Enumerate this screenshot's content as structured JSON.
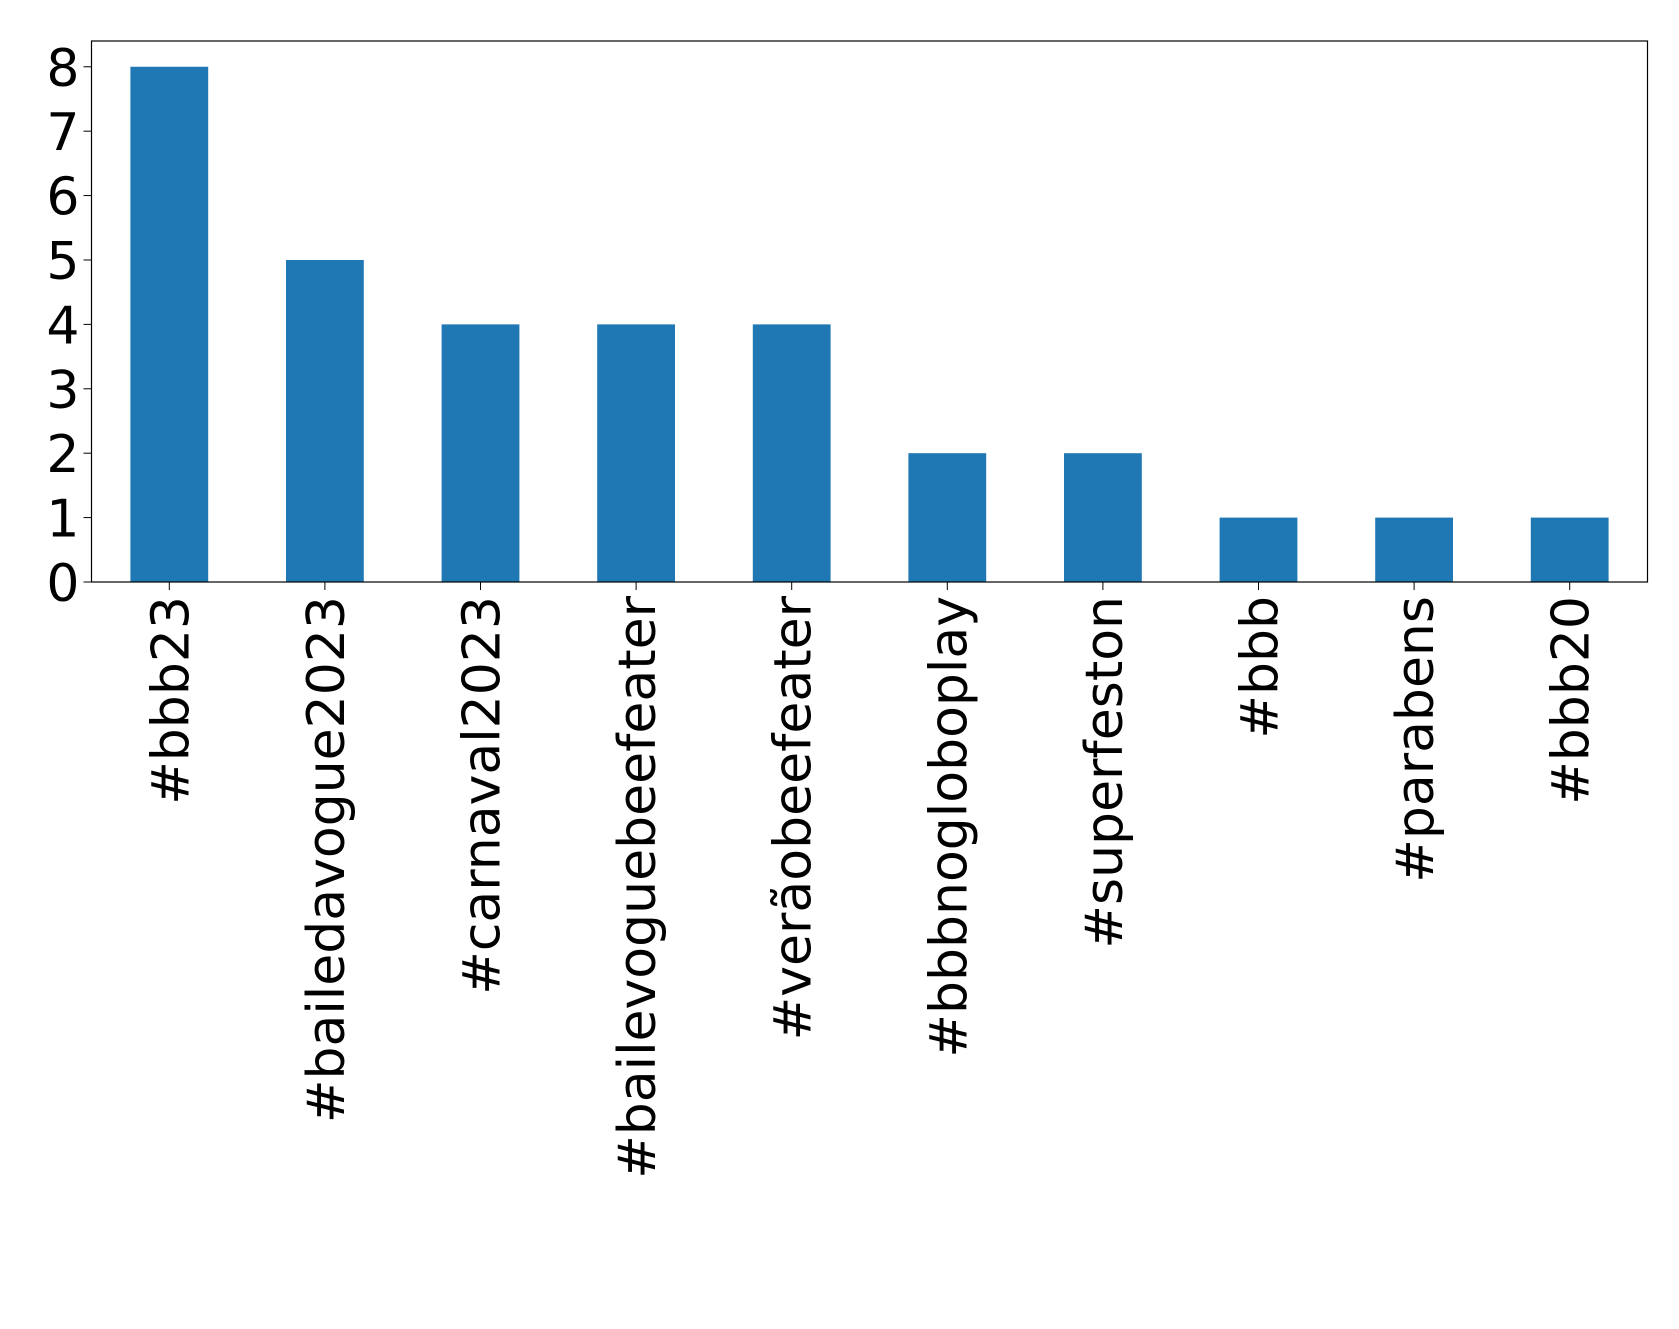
{
  "chart_data": {
    "type": "bar",
    "categories": [
      "#bbb23",
      "#bailedavogue2023",
      "#carnaval2023",
      "#bailevoguebeefeater",
      "#verãobeefeater",
      "#bbbnogloboplay",
      "#superfeston",
      "#bbb",
      "#parabens",
      "#bbb20"
    ],
    "values": [
      8,
      5,
      4,
      4,
      4,
      2,
      2,
      1,
      1,
      1
    ],
    "color": "#1f77b4",
    "ylim": [
      0,
      8.4
    ],
    "yticks": [
      0,
      1,
      2,
      3,
      4,
      5,
      6,
      7,
      8
    ],
    "grid": false
  }
}
